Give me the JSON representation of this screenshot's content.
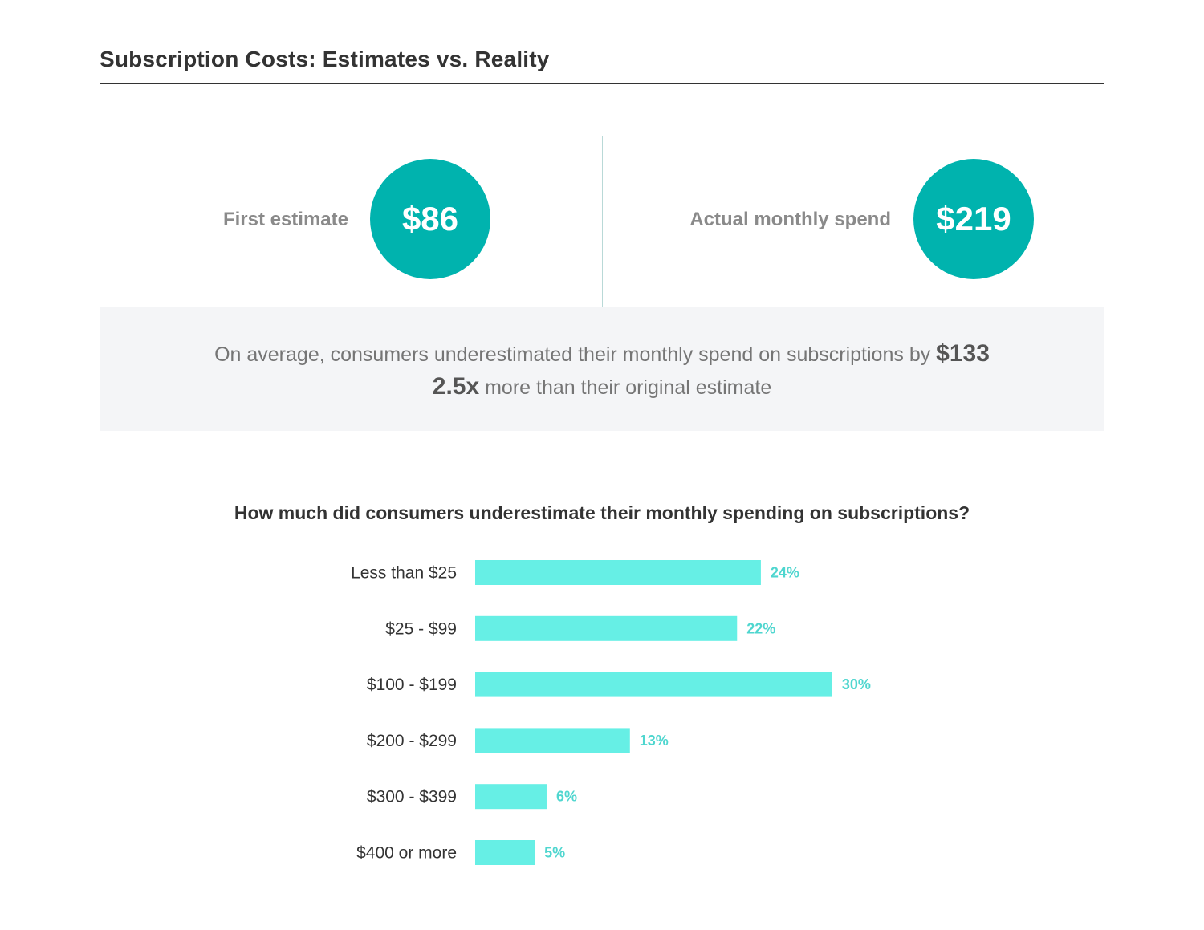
{
  "title": "Subscription Costs: Estimates vs. Reality",
  "stats": {
    "first": {
      "label": "First estimate",
      "value": "$86"
    },
    "actual": {
      "label": "Actual monthly spend",
      "value": "$219"
    }
  },
  "summary": {
    "line1_text": "On average, consumers underestimated their monthly spend on subscriptions by",
    "line1_highlight": "$133",
    "line2_highlight": "2.5x",
    "line2_text": "more than their original estimate"
  },
  "colors": {
    "circle": "#00b3ae",
    "bar": "#66efe5",
    "value_label": "#4fd6cf"
  },
  "chart_data": {
    "type": "bar",
    "orientation": "horizontal",
    "title": "How much did consumers underestimate their monthly spending on subscriptions?",
    "categories": [
      "Less than $25",
      "$25 - $99",
      "$100 - $199",
      "$200 - $299",
      "$300 - $399",
      "$400 or more"
    ],
    "values": [
      24,
      22,
      30,
      13,
      6,
      5
    ],
    "value_labels": [
      "24%",
      "22%",
      "30%",
      "13%",
      "6%",
      "5%"
    ],
    "unit": "%",
    "grid": false
  }
}
